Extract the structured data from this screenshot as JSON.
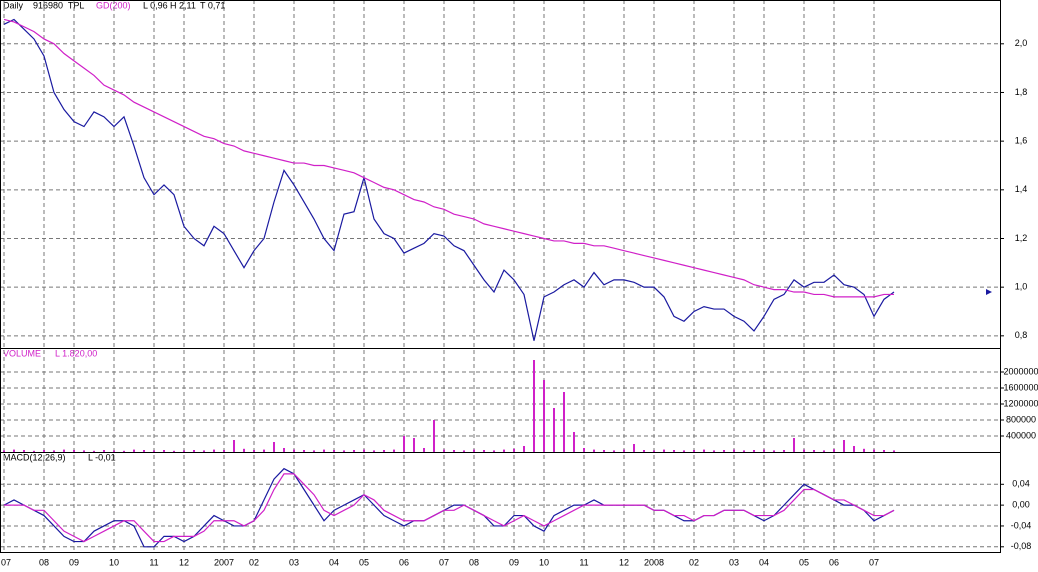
{
  "chart_data": [
    {
      "type": "line",
      "title": "Daily",
      "annotations": [
        "L 0,96",
        "H 2,11",
        "T 0,71"
      ],
      "categories": [
        "07",
        null,
        null,
        null,
        "08",
        null,
        null,
        "09",
        null,
        null,
        null,
        "10",
        null,
        null,
        null,
        "11",
        null,
        null,
        "12",
        null,
        null,
        null,
        "2007",
        null,
        null,
        "02",
        null,
        null,
        null,
        "03",
        null,
        null,
        null,
        "04",
        null,
        null,
        "05",
        null,
        null,
        null,
        "06",
        null,
        null,
        null,
        "07",
        null,
        null,
        "08",
        null,
        null,
        null,
        "09",
        null,
        null,
        "10",
        null,
        null,
        null,
        "11",
        null,
        null,
        null,
        "12",
        null,
        null,
        "2008",
        null,
        null,
        null,
        "02",
        null,
        null,
        null,
        "03",
        null,
        null,
        "04",
        null,
        null,
        null,
        "05",
        null,
        null,
        "06",
        null,
        null,
        null,
        "07",
        null,
        null
      ],
      "series": [
        {
          "name": "916980  TPL",
          "color": "#1a1aa0",
          "values": [
            2.08,
            2.1,
            2.06,
            2.02,
            1.95,
            1.8,
            1.73,
            1.68,
            1.66,
            1.72,
            1.7,
            1.66,
            1.7,
            1.58,
            1.45,
            1.38,
            1.42,
            1.38,
            1.25,
            1.2,
            1.17,
            1.25,
            1.22,
            1.15,
            1.08,
            1.15,
            1.2,
            1.35,
            1.48,
            1.42,
            1.35,
            1.28,
            1.2,
            1.15,
            1.3,
            1.31,
            1.45,
            1.28,
            1.22,
            1.2,
            1.14,
            1.16,
            1.18,
            1.22,
            1.21,
            1.17,
            1.15,
            1.09,
            1.03,
            0.98,
            1.07,
            1.03,
            0.97,
            0.78,
            0.96,
            0.98,
            1.01,
            1.03,
            1.0,
            1.06,
            1.01,
            1.03,
            1.03,
            1.02,
            1.0,
            1.0,
            0.96,
            0.88,
            0.86,
            0.9,
            0.92,
            0.91,
            0.91,
            0.88,
            0.86,
            0.82,
            0.88,
            0.95,
            0.97,
            1.03,
            1.0,
            1.02,
            1.02,
            1.05,
            1.01,
            1.0,
            0.97,
            0.88,
            0.95,
            0.98
          ]
        },
        {
          "name": "GD(200)",
          "color": "#d020c8",
          "values": [
            2.1,
            2.09,
            2.07,
            2.05,
            2.02,
            2.0,
            1.96,
            1.93,
            1.9,
            1.87,
            1.83,
            1.81,
            1.79,
            1.76,
            1.74,
            1.72,
            1.7,
            1.68,
            1.66,
            1.64,
            1.62,
            1.61,
            1.59,
            1.58,
            1.56,
            1.55,
            1.54,
            1.53,
            1.52,
            1.51,
            1.51,
            1.5,
            1.5,
            1.49,
            1.48,
            1.47,
            1.45,
            1.43,
            1.41,
            1.4,
            1.38,
            1.36,
            1.35,
            1.33,
            1.32,
            1.3,
            1.29,
            1.28,
            1.26,
            1.25,
            1.24,
            1.23,
            1.22,
            1.21,
            1.2,
            1.19,
            1.19,
            1.18,
            1.18,
            1.17,
            1.17,
            1.16,
            1.15,
            1.14,
            1.13,
            1.12,
            1.11,
            1.1,
            1.09,
            1.08,
            1.07,
            1.06,
            1.05,
            1.04,
            1.03,
            1.01,
            1.0,
            0.99,
            0.99,
            0.98,
            0.98,
            0.97,
            0.97,
            0.96,
            0.96,
            0.96,
            0.96,
            0.96,
            0.97,
            0.97
          ]
        }
      ],
      "ylim": [
        0.75,
        2.18
      ],
      "yticks": [
        {
          "value": 0.8,
          "label": "0,8"
        },
        {
          "value": 1.0,
          "label": "1,0"
        },
        {
          "value": 1.2,
          "label": "1,2"
        },
        {
          "value": 1.4,
          "label": "1,4"
        },
        {
          "value": 1.6,
          "label": "1,6"
        },
        {
          "value": 1.8,
          "label": "1,8"
        },
        {
          "value": 2.0,
          "label": "2,0"
        }
      ],
      "grid": true
    },
    {
      "type": "bar",
      "title": "VOLUME",
      "annotations": [
        "L 1.820,00"
      ],
      "color": "#d020c8",
      "values": [
        40000,
        60000,
        50000,
        30000,
        50000,
        40000,
        60000,
        50000,
        40000,
        30000,
        50000,
        40000,
        30000,
        60000,
        50000,
        40000,
        50000,
        30000,
        40000,
        50000,
        40000,
        60000,
        50000,
        300000,
        80000,
        50000,
        60000,
        250000,
        100000,
        60000,
        50000,
        40000,
        60000,
        50000,
        40000,
        50000,
        60000,
        40000,
        50000,
        60000,
        400000,
        350000,
        100000,
        800000,
        60000,
        50000,
        40000,
        60000,
        50000,
        40000,
        60000,
        80000,
        150000,
        2300000,
        1800000,
        1100000,
        1500000,
        500000,
        100000,
        60000,
        50000,
        40000,
        60000,
        200000,
        50000,
        40000,
        60000,
        50000,
        40000,
        50000,
        60000,
        40000,
        50000,
        60000,
        40000,
        50000,
        60000,
        40000,
        50000,
        350000,
        60000,
        50000,
        40000,
        70000,
        300000,
        150000,
        80000,
        60000,
        50000,
        40000
      ],
      "ylim": [
        0,
        2600000
      ],
      "yticks": [
        400000,
        800000,
        1200000,
        1600000,
        2000000
      ],
      "grid": true
    },
    {
      "type": "line",
      "title": "MACD(12,26,9)",
      "annotations": [
        "L -0,01"
      ],
      "series": [
        {
          "color": "#1a1aa0",
          "values": [
            0.0,
            0.01,
            0.0,
            -0.01,
            -0.02,
            -0.04,
            -0.06,
            -0.07,
            -0.07,
            -0.05,
            -0.04,
            -0.03,
            -0.03,
            -0.04,
            -0.08,
            -0.08,
            -0.06,
            -0.06,
            -0.07,
            -0.06,
            -0.04,
            -0.02,
            -0.03,
            -0.04,
            -0.04,
            -0.03,
            0.01,
            0.05,
            0.07,
            0.06,
            0.03,
            0.0,
            -0.03,
            -0.01,
            0.0,
            0.01,
            0.02,
            0.0,
            -0.02,
            -0.03,
            -0.04,
            -0.03,
            -0.03,
            -0.02,
            -0.01,
            0.0,
            0.0,
            -0.01,
            -0.02,
            -0.04,
            -0.04,
            -0.02,
            -0.02,
            -0.04,
            -0.05,
            -0.02,
            -0.01,
            0.0,
            0.0,
            0.01,
            0.0,
            0.0,
            0.0,
            0.0,
            0.0,
            -0.01,
            -0.01,
            -0.02,
            -0.03,
            -0.03,
            -0.02,
            -0.02,
            -0.01,
            -0.01,
            -0.01,
            -0.02,
            -0.03,
            -0.02,
            0.0,
            0.02,
            0.04,
            0.03,
            0.02,
            0.01,
            0.0,
            0.0,
            -0.01,
            -0.03,
            -0.02,
            -0.01
          ]
        },
        {
          "color": "#d020c8",
          "values": [
            0.0,
            0.0,
            0.0,
            -0.01,
            -0.01,
            -0.03,
            -0.05,
            -0.06,
            -0.07,
            -0.06,
            -0.05,
            -0.04,
            -0.03,
            -0.03,
            -0.05,
            -0.07,
            -0.07,
            -0.06,
            -0.06,
            -0.06,
            -0.05,
            -0.03,
            -0.03,
            -0.03,
            -0.04,
            -0.03,
            -0.01,
            0.03,
            0.06,
            0.06,
            0.04,
            0.02,
            -0.01,
            -0.02,
            -0.01,
            0.0,
            0.02,
            0.01,
            -0.01,
            -0.02,
            -0.03,
            -0.03,
            -0.03,
            -0.02,
            -0.01,
            -0.01,
            0.0,
            -0.01,
            -0.02,
            -0.03,
            -0.04,
            -0.03,
            -0.02,
            -0.03,
            -0.04,
            -0.03,
            -0.02,
            -0.01,
            0.0,
            0.0,
            0.0,
            0.0,
            0.0,
            0.0,
            0.0,
            -0.01,
            -0.01,
            -0.02,
            -0.02,
            -0.03,
            -0.02,
            -0.02,
            -0.01,
            -0.01,
            -0.01,
            -0.02,
            -0.02,
            -0.02,
            -0.01,
            0.01,
            0.03,
            0.03,
            0.02,
            0.01,
            0.01,
            0.0,
            -0.01,
            -0.02,
            -0.02,
            -0.01
          ]
        }
      ],
      "ylim": [
        -0.09,
        0.102
      ],
      "yticks": [
        {
          "value": -0.08,
          "label": "-0,08"
        },
        {
          "value": -0.04,
          "label": "-0,04"
        },
        {
          "value": 0,
          "label": "0,00"
        },
        {
          "value": 0.04,
          "label": "0,04"
        }
      ],
      "grid": true
    }
  ]
}
